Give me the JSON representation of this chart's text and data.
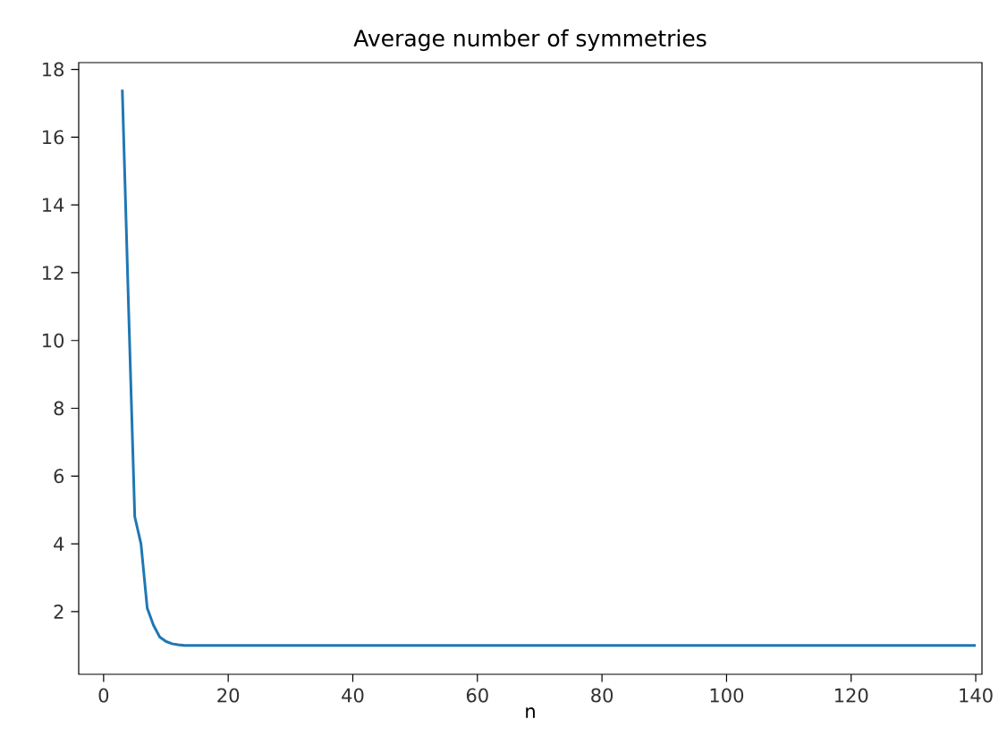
{
  "chart_data": {
    "type": "line",
    "title": "Average number of symmetries",
    "xlabel": "n",
    "x": [
      3,
      4,
      5,
      6,
      7,
      8,
      9,
      10,
      11,
      12,
      13,
      14,
      20,
      40,
      60,
      80,
      100,
      120,
      140
    ],
    "series": [
      {
        "color": "#1f77b4",
        "values": [
          17.4,
          11,
          4.8,
          4.0,
          2.1,
          1.6,
          1.25,
          1.12,
          1.05,
          1.02,
          1.0,
          1.0,
          1.0,
          1.0,
          1.0,
          1.0,
          1.0,
          1.0,
          1.0
        ]
      }
    ],
    "xlim": [
      -4,
      141
    ],
    "ylim": [
      0.15,
      18.2
    ],
    "xticks": [
      0,
      20,
      40,
      60,
      80,
      100,
      120,
      140
    ],
    "yticks": [
      2,
      4,
      6,
      8,
      10,
      12,
      14,
      16,
      18
    ],
    "grid": false,
    "line_style": "solid"
  }
}
